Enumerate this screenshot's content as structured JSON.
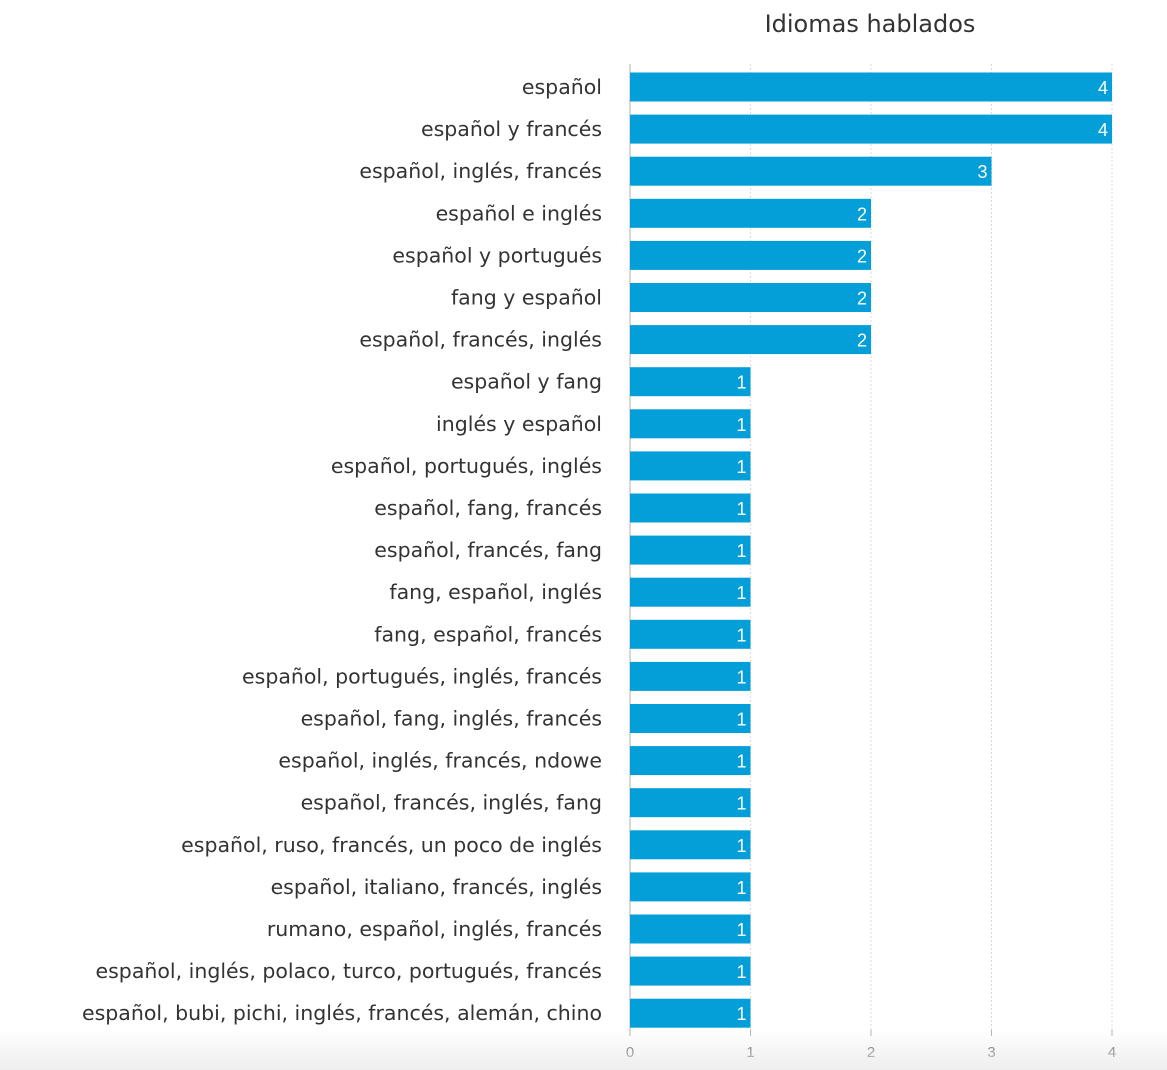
{
  "chart_data": {
    "type": "bar",
    "orientation": "horizontal",
    "title": "Idiomas hablados",
    "xlabel": "",
    "ylabel": "",
    "categories": [
      "español",
      "español y francés",
      "español, inglés, francés",
      "español e inglés",
      "español y portugués",
      "fang y español",
      "español, francés, inglés",
      "español y fang",
      "inglés y español",
      "español, portugués, inglés",
      "español, fang, francés",
      "español, francés, fang",
      "fang, español, inglés",
      "fang, español, francés",
      "español, portugués, inglés, francés",
      "español, fang, inglés, francés",
      "español, inglés, francés, ndowe",
      "español, francés, inglés, fang",
      "español, ruso, francés, un poco de inglés",
      "español, italiano, francés, inglés",
      "rumano, español, inglés, francés",
      "español, inglés, polaco, turco, portugués, francés",
      "español, bubi, pichi, inglés, francés, alemán, chino"
    ],
    "values": [
      4,
      4,
      3,
      2,
      2,
      2,
      2,
      1,
      1,
      1,
      1,
      1,
      1,
      1,
      1,
      1,
      1,
      1,
      1,
      1,
      1,
      1,
      1
    ],
    "value_labels": [
      "4",
      "4",
      "3",
      "2",
      "2",
      "2",
      "2",
      "1",
      "1",
      "1",
      "1",
      "1",
      "1",
      "1",
      "1",
      "1",
      "1",
      "1",
      "1",
      "1",
      "1",
      "1",
      "1"
    ],
    "xticks": [
      "0",
      "1",
      "2",
      "3",
      "4"
    ],
    "xlim": [
      0,
      4
    ],
    "grid": true,
    "legend": "none",
    "colors": {
      "bar": "#049fd9",
      "grid": "#d8d8d8",
      "axis": "#b0b0b0"
    }
  }
}
